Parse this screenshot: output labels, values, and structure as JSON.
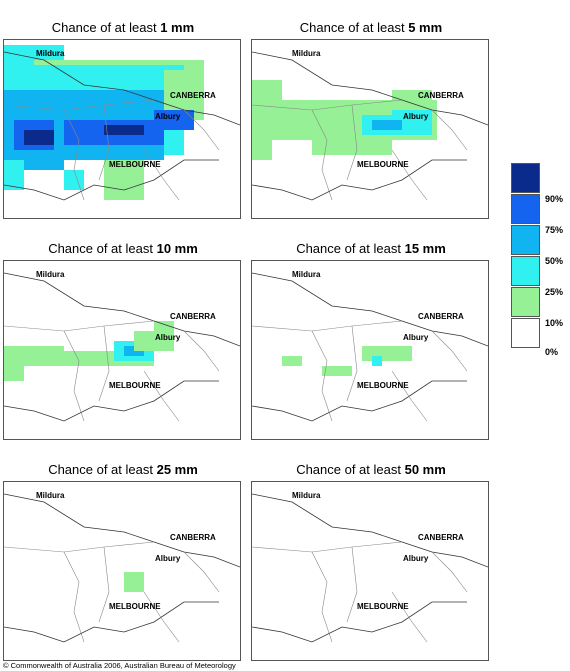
{
  "title_prefix": "Chance of at least",
  "panels": [
    {
      "amount": "1 mm"
    },
    {
      "amount": "5 mm"
    },
    {
      "amount": "10 mm"
    },
    {
      "amount": "15 mm"
    },
    {
      "amount": "25 mm"
    },
    {
      "amount": "50 mm"
    }
  ],
  "places": {
    "mildura": "Mildura",
    "canberra": "CANBERRA",
    "albury": "Albury",
    "melbourne": "MELBOURNE"
  },
  "legend": {
    "labels": [
      "90%",
      "75%",
      "50%",
      "25%",
      "10%",
      "0%"
    ],
    "colors": [
      "#0a2a8c",
      "#1464f0",
      "#10b4f0",
      "#30f0f0",
      "#96f096",
      "#ffffff"
    ]
  },
  "copyright": "© Commonwealth of Australia 2006, Australian Bureau of Meteorology"
}
